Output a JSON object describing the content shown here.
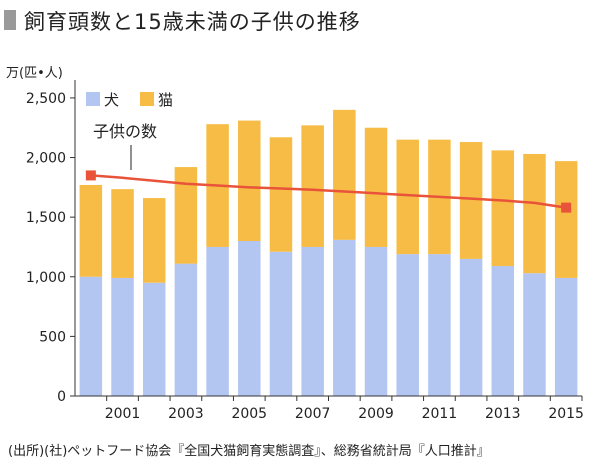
{
  "title": "飼育頭数と15歳未満の子供の推移",
  "unit": "万(匹•人)",
  "source": "(出所)(社)ペットフード協会『全国犬猫飼育実態調査』、総務省統計局『人口推計』",
  "chart_data": {
    "type": "bar",
    "stacked": true,
    "categories": [
      "2000",
      "2001",
      "2002",
      "2003",
      "2004",
      "2005",
      "2006",
      "2007",
      "2008",
      "2009",
      "2010",
      "2011",
      "2012",
      "2013",
      "2014",
      "2015"
    ],
    "x_tick_labels": [
      "2001",
      "2003",
      "2005",
      "2007",
      "2009",
      "2011",
      "2013",
      "2015"
    ],
    "y_ticks": [
      0,
      500,
      1000,
      1500,
      2000,
      2500
    ],
    "y_tick_labels": [
      "0",
      "500",
      "1,000",
      "1,500",
      "2,000",
      "2,500"
    ],
    "ylim": [
      0,
      2600
    ],
    "series": [
      {
        "name": "犬",
        "color": "#b3c6f2",
        "values": [
          1000,
          990,
          950,
          1110,
          1250,
          1300,
          1210,
          1250,
          1310,
          1250,
          1190,
          1190,
          1150,
          1090,
          1030,
          990
        ]
      },
      {
        "name": "猫",
        "color": "#f6bc45",
        "values": [
          770,
          745,
          710,
          810,
          1030,
          1010,
          960,
          1020,
          1090,
          1000,
          960,
          960,
          980,
          970,
          1000,
          980
        ]
      }
    ],
    "line": {
      "label": "子供の数",
      "color": "#e8533a",
      "values": [
        1850,
        1830,
        1805,
        1780,
        1765,
        1750,
        1740,
        1730,
        1715,
        1700,
        1685,
        1670,
        1655,
        1640,
        1620,
        1580
      ]
    },
    "legend_position": "top-left",
    "grid": false
  }
}
